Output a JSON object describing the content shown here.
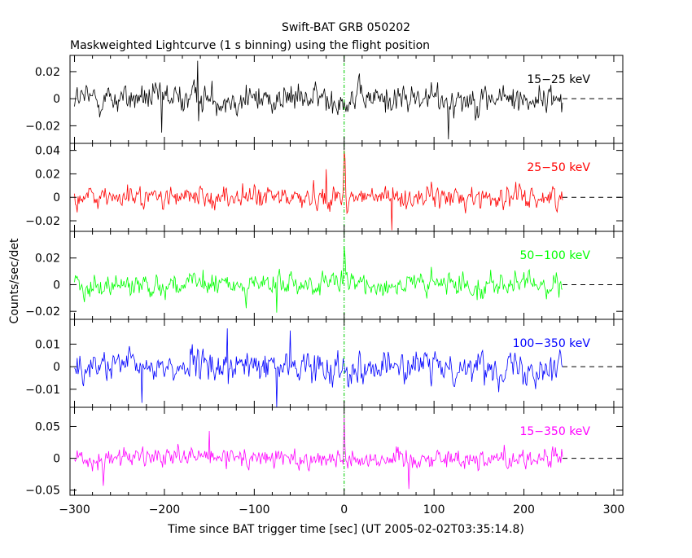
{
  "chart_data": {
    "type": "line",
    "title": "Swift-BAT GRB 050202",
    "subtitle": "Maskweighted Lightcurve (1 s binning) using the flight position",
    "xlabel": "Time since BAT trigger time [sec] (UT 2005-02-02T03:35:14.8)",
    "ylabel": "Counts/sec/det",
    "xlim": [
      -305,
      310
    ],
    "xticks": [
      -300,
      -200,
      -100,
      0,
      100,
      200,
      300
    ],
    "xtick_labels": [
      "−300",
      "−200",
      "−100",
      "0",
      "100",
      "200",
      "300"
    ],
    "x_range_of_data": [
      -300,
      243
    ],
    "trigger_time_marker": 0,
    "panels": [
      {
        "band": "15-25 keV",
        "label": "15−25 keV",
        "color": "#000000",
        "ylim": [
          -0.033,
          0.032
        ],
        "yticks": [
          -0.02,
          0,
          0.02
        ],
        "ytick_labels": [
          "−0.02",
          "0",
          "0.02"
        ],
        "noise_sigma": 0.0075,
        "spikes": [
          [
            116,
            -0.03
          ],
          [
            -203,
            -0.025
          ],
          [
            -163,
            0.028
          ]
        ]
      },
      {
        "band": "25-50 keV",
        "label": "25−50 keV",
        "color": "#ff0000",
        "ylim": [
          -0.029,
          0.046
        ],
        "yticks": [
          -0.02,
          0,
          0.02,
          0.04
        ],
        "ytick_labels": [
          "−0.02",
          "0",
          "0.02",
          "0.04"
        ],
        "noise_sigma": 0.0065,
        "spikes": [
          [
            0,
            0.04
          ],
          [
            1,
            0.033
          ],
          [
            53,
            -0.028
          ],
          [
            -20,
            0.024
          ]
        ]
      },
      {
        "band": "50-100 keV",
        "label": "50−100 keV",
        "color": "#00ff00",
        "ylim": [
          -0.026,
          0.04
        ],
        "yticks": [
          -0.02,
          0,
          0.02
        ],
        "ytick_labels": [
          "−0.02",
          "0",
          "0.02"
        ],
        "noise_sigma": 0.006,
        "spikes": [
          [
            0,
            0.029
          ],
          [
            1,
            0.022
          ],
          [
            -75,
            -0.021
          ]
        ]
      },
      {
        "band": "100-350 keV",
        "label": "100−350 keV",
        "color": "#0000ff",
        "ylim": [
          -0.018,
          0.021
        ],
        "yticks": [
          -0.01,
          0,
          0.01
        ],
        "ytick_labels": [
          "−0.01",
          "0",
          "0.01"
        ],
        "noise_sigma": 0.0045,
        "spikes": [
          [
            -75,
            -0.018
          ],
          [
            -225,
            -0.016
          ],
          [
            -130,
            0.017
          ],
          [
            -60,
            0.016
          ]
        ]
      },
      {
        "band": "15-350 keV",
        "label": "15−350 keV",
        "color": "#ff00ff",
        "ylim": [
          -0.058,
          0.08
        ],
        "yticks": [
          -0.05,
          0,
          0.05
        ],
        "ytick_labels": [
          "−0.05",
          "0",
          "0.05"
        ],
        "noise_sigma": 0.011,
        "spikes": [
          [
            0,
            0.07
          ],
          [
            -150,
            0.043
          ],
          [
            -268,
            -0.043
          ],
          [
            72,
            -0.048
          ]
        ]
      }
    ]
  }
}
